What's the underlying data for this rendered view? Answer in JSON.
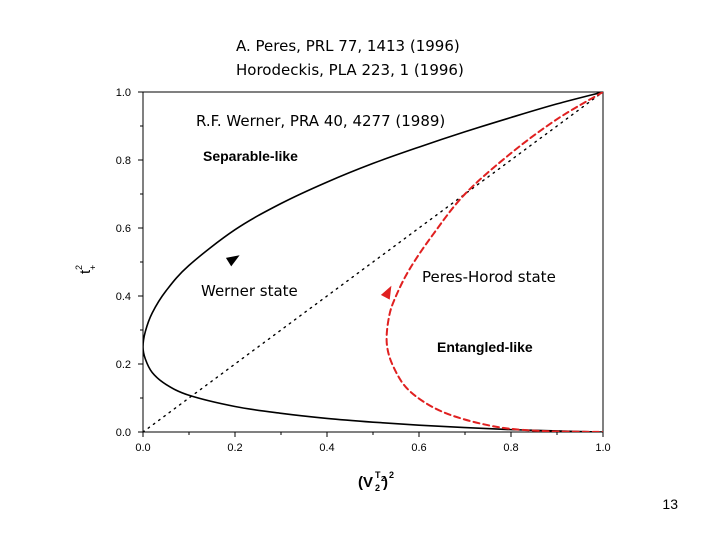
{
  "references": {
    "line1": "A.  Peres, PRL 77, 1413 (1996)",
    "line2": "Horodeckis, PLA 223, 1 (1996)",
    "werner": "R.F. Werner, PRA 40, 4277 (1989)"
  },
  "slide_number": "13",
  "chart_data": {
    "type": "line",
    "xlabel": "(V",
    "xlabel_sub": "2",
    "xlabel_sup_T": "T",
    "xlabel_sup_2": "2",
    "xlabel_close": ")",
    "xlabel_outer_sup": "2",
    "ylabel_base": "t",
    "ylabel_sub": "+",
    "ylabel_sup": "2",
    "xlim": [
      0.0,
      1.0
    ],
    "ylim": [
      0.0,
      1.0
    ],
    "x_ticks": [
      "0.0",
      "0.2",
      "0.4",
      "0.6",
      "0.8",
      "1.0"
    ],
    "y_ticks": [
      "0.0",
      "0.2",
      "0.4",
      "0.6",
      "0.8",
      "1.0"
    ],
    "regions": {
      "separable": "Separable-like",
      "entangled": "Entangled-like"
    },
    "annotations": {
      "werner": "Werner state",
      "peres": "Peres-Horod state"
    },
    "series": [
      {
        "style": "solid",
        "color": "#000000",
        "points": [
          [
            1.0,
            1.0
          ],
          [
            0.9,
            0.965
          ],
          [
            0.8,
            0.925
          ],
          [
            0.7,
            0.883
          ],
          [
            0.6,
            0.838
          ],
          [
            0.5,
            0.79
          ],
          [
            0.4,
            0.735
          ],
          [
            0.3,
            0.672
          ],
          [
            0.2,
            0.595
          ],
          [
            0.1,
            0.49
          ],
          [
            0.05,
            0.415
          ],
          [
            0.02,
            0.35
          ],
          [
            0.005,
            0.295
          ],
          [
            0.0,
            0.25
          ],
          [
            0.005,
            0.215
          ],
          [
            0.02,
            0.175
          ],
          [
            0.05,
            0.14
          ],
          [
            0.1,
            0.108
          ],
          [
            0.2,
            0.075
          ],
          [
            0.3,
            0.055
          ],
          [
            0.4,
            0.04
          ],
          [
            0.5,
            0.029
          ],
          [
            0.6,
            0.02
          ],
          [
            0.7,
            0.013
          ],
          [
            0.8,
            0.007
          ],
          [
            0.9,
            0.003
          ],
          [
            1.0,
            0.0
          ]
        ],
        "arrow_at": [
          0.21,
          0.52
        ]
      },
      {
        "style": "dotted",
        "color": "#000000",
        "points": [
          [
            0.0,
            0.0
          ],
          [
            1.0,
            1.0
          ]
        ]
      },
      {
        "style": "dashed",
        "color": "#e02020",
        "points": [
          [
            1.0,
            1.0
          ],
          [
            0.9,
            0.92
          ],
          [
            0.8,
            0.82
          ],
          [
            0.7,
            0.7
          ],
          [
            0.63,
            0.58
          ],
          [
            0.58,
            0.48
          ],
          [
            0.55,
            0.4
          ],
          [
            0.535,
            0.34
          ],
          [
            0.53,
            0.26
          ],
          [
            0.545,
            0.19
          ],
          [
            0.58,
            0.12
          ],
          [
            0.65,
            0.06
          ],
          [
            0.75,
            0.02
          ],
          [
            0.85,
            0.004
          ],
          [
            1.0,
            0.0
          ]
        ],
        "arrow_at": [
          0.54,
          0.43
        ]
      }
    ]
  }
}
